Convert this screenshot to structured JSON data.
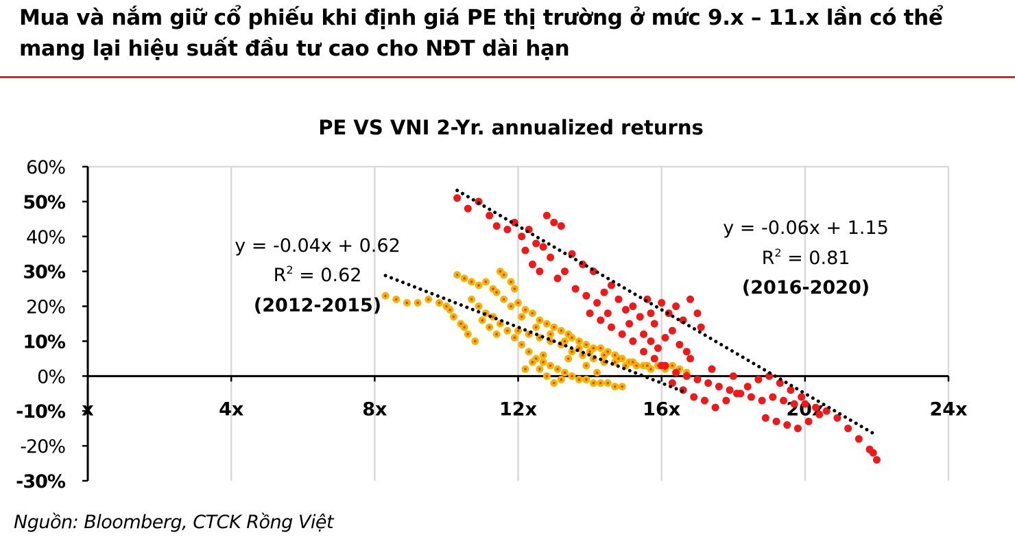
{
  "headline": "Mua và nắm giữ cổ phiếu khi định giá PE thị trường ở mức 9.x – 11.x lần có thể mang lại hiệu suất đầu tư cao cho NĐT dài hạn",
  "source": "Nguồn: Bloomberg, CTCK Rồng Việt",
  "colors": {
    "accent": "#e2202c",
    "series_2012": "#f5b400",
    "series_2012_dot": "#e0401a",
    "series_2016": "#f01818",
    "trend": "#000000",
    "grid": "#d9d9d9"
  },
  "chart_data": {
    "type": "scatter",
    "title": "PE VS VNI 2-Yr.  annualized returns",
    "xlabel": "",
    "ylabel": "",
    "xlim": [
      0,
      24
    ],
    "ylim": [
      -0.3,
      0.6
    ],
    "x_ticks": [
      0,
      4,
      8,
      12,
      16,
      20,
      24
    ],
    "x_tick_labels": [
      "x",
      "4x",
      "8x",
      "12x",
      "16x",
      "20x",
      "24x"
    ],
    "y_ticks": [
      0.6,
      0.5,
      0.4,
      0.3,
      0.2,
      0.1,
      0,
      -0.1,
      -0.2,
      -0.3
    ],
    "y_tick_labels": [
      "60%",
      "50%",
      "40%",
      "30%",
      "20%",
      "10%",
      "0%",
      "-10%",
      "-20%",
      "-30%"
    ],
    "grid": "vertical",
    "legend": "none",
    "series": [
      {
        "period": "2012-2015",
        "color": "#f5b400",
        "points": [
          [
            8.3,
            0.23
          ],
          [
            8.6,
            0.22
          ],
          [
            8.9,
            0.21
          ],
          [
            9.2,
            0.21
          ],
          [
            9.5,
            0.22
          ],
          [
            9.8,
            0.21
          ],
          [
            10.0,
            0.2
          ],
          [
            10.1,
            0.19
          ],
          [
            10.2,
            0.17
          ],
          [
            10.4,
            0.15
          ],
          [
            10.5,
            0.14
          ],
          [
            10.6,
            0.12
          ],
          [
            10.8,
            0.1
          ],
          [
            10.3,
            0.29
          ],
          [
            10.5,
            0.28
          ],
          [
            10.7,
            0.27
          ],
          [
            10.9,
            0.26
          ],
          [
            11.1,
            0.27
          ],
          [
            11.3,
            0.25
          ],
          [
            11.4,
            0.24
          ],
          [
            11.5,
            0.3
          ],
          [
            11.6,
            0.29
          ],
          [
            11.8,
            0.27
          ],
          [
            11.9,
            0.25
          ],
          [
            11.6,
            0.22
          ],
          [
            11.8,
            0.2
          ],
          [
            12.0,
            0.21
          ],
          [
            12.2,
            0.19
          ],
          [
            12.4,
            0.18
          ],
          [
            12.6,
            0.16
          ],
          [
            12.8,
            0.15
          ],
          [
            13.0,
            0.14
          ],
          [
            13.2,
            0.13
          ],
          [
            13.4,
            0.12
          ],
          [
            13.5,
            0.11
          ],
          [
            13.7,
            0.1
          ],
          [
            13.9,
            0.09
          ],
          [
            14.1,
            0.08
          ],
          [
            14.3,
            0.08
          ],
          [
            14.5,
            0.07
          ],
          [
            14.7,
            0.06
          ],
          [
            14.9,
            0.05
          ],
          [
            15.1,
            0.04
          ],
          [
            15.3,
            0.03
          ],
          [
            15.5,
            0.03
          ],
          [
            15.7,
            0.02
          ],
          [
            15.9,
            0.03
          ],
          [
            16.1,
            0.02
          ],
          [
            16.3,
            0.03
          ],
          [
            16.5,
            0.02
          ],
          [
            16.7,
            0.01
          ],
          [
            10.7,
            0.22
          ],
          [
            10.9,
            0.2
          ],
          [
            11.1,
            0.18
          ],
          [
            11.3,
            0.17
          ],
          [
            11.5,
            0.15
          ],
          [
            11.7,
            0.13
          ],
          [
            11.9,
            0.11
          ],
          [
            12.1,
            0.09
          ],
          [
            12.3,
            0.07
          ],
          [
            12.5,
            0.05
          ],
          [
            12.7,
            0.04
          ],
          [
            12.9,
            0.03
          ],
          [
            13.1,
            0.02
          ],
          [
            13.3,
            0.01
          ],
          [
            13.5,
            0.0
          ],
          [
            13.7,
            -0.01
          ],
          [
            13.9,
            -0.01
          ],
          [
            14.1,
            -0.02
          ],
          [
            14.3,
            -0.02
          ],
          [
            14.5,
            -0.02
          ],
          [
            14.7,
            -0.03
          ],
          [
            14.9,
            -0.03
          ],
          [
            12.0,
            0.13
          ],
          [
            12.3,
            0.12
          ],
          [
            12.6,
            0.11
          ],
          [
            12.9,
            0.1
          ],
          [
            13.2,
            0.09
          ],
          [
            13.5,
            0.07
          ],
          [
            13.8,
            0.06
          ],
          [
            14.1,
            0.05
          ],
          [
            14.4,
            0.04
          ],
          [
            14.7,
            0.04
          ],
          [
            15.0,
            0.03
          ],
          [
            12.4,
            0.04
          ],
          [
            12.6,
            0.02
          ],
          [
            12.8,
            0.0
          ],
          [
            13.0,
            -0.02
          ],
          [
            13.2,
            -0.01
          ],
          [
            11.0,
            0.16
          ],
          [
            11.2,
            0.14
          ],
          [
            11.4,
            0.12
          ],
          [
            12.1,
            0.17
          ],
          [
            12.5,
            0.14
          ],
          [
            12.9,
            0.12
          ],
          [
            13.3,
            0.1
          ],
          [
            13.7,
            0.08
          ],
          [
            14.0,
            0.07
          ],
          [
            14.4,
            0.06
          ],
          [
            14.8,
            0.05
          ],
          [
            15.2,
            0.04
          ],
          [
            15.6,
            0.03
          ],
          [
            12.2,
            0.02
          ],
          [
            12.7,
            0.06
          ],
          [
            13.4,
            0.05
          ],
          [
            13.9,
            0.03
          ],
          [
            14.2,
            0.01
          ]
        ]
      },
      {
        "period": "2016-2020",
        "color": "#f01818",
        "points": [
          [
            10.3,
            0.51
          ],
          [
            10.6,
            0.48
          ],
          [
            10.9,
            0.5
          ],
          [
            11.2,
            0.46
          ],
          [
            11.4,
            0.43
          ],
          [
            11.7,
            0.42
          ],
          [
            11.9,
            0.44
          ],
          [
            12.1,
            0.4
          ],
          [
            12.3,
            0.42
          ],
          [
            12.5,
            0.38
          ],
          [
            12.7,
            0.37
          ],
          [
            12.8,
            0.46
          ],
          [
            13.0,
            0.44
          ],
          [
            13.2,
            0.43
          ],
          [
            12.4,
            0.32
          ],
          [
            12.6,
            0.3
          ],
          [
            12.9,
            0.34
          ],
          [
            13.1,
            0.28
          ],
          [
            13.3,
            0.3
          ],
          [
            13.6,
            0.25
          ],
          [
            13.9,
            0.23
          ],
          [
            14.2,
            0.21
          ],
          [
            14.4,
            0.24
          ],
          [
            14.6,
            0.26
          ],
          [
            14.8,
            0.22
          ],
          [
            15.0,
            0.19
          ],
          [
            15.2,
            0.2
          ],
          [
            15.4,
            0.17
          ],
          [
            15.6,
            0.22
          ],
          [
            15.8,
            0.15
          ],
          [
            16.0,
            0.21
          ],
          [
            16.2,
            0.18
          ],
          [
            16.4,
            0.2
          ],
          [
            16.6,
            0.16
          ],
          [
            16.8,
            0.22
          ],
          [
            17.0,
            0.18
          ],
          [
            17.1,
            0.14
          ],
          [
            15.5,
            0.12
          ],
          [
            15.7,
            0.1
          ],
          [
            15.9,
            0.08
          ],
          [
            16.1,
            0.11
          ],
          [
            16.3,
            0.13
          ],
          [
            16.5,
            0.09
          ],
          [
            16.7,
            0.07
          ],
          [
            14.0,
            0.18
          ],
          [
            14.3,
            0.16
          ],
          [
            14.6,
            0.14
          ],
          [
            14.9,
            0.12
          ],
          [
            15.2,
            0.1
          ],
          [
            15.5,
            0.07
          ],
          [
            15.8,
            0.05
          ],
          [
            16.1,
            0.03
          ],
          [
            16.4,
            0.01
          ],
          [
            16.7,
            0.0
          ],
          [
            17.0,
            -0.01
          ],
          [
            17.3,
            -0.02
          ],
          [
            17.6,
            -0.03
          ],
          [
            17.9,
            -0.04
          ],
          [
            18.2,
            -0.05
          ],
          [
            18.5,
            -0.06
          ],
          [
            18.8,
            -0.07
          ],
          [
            19.1,
            -0.06
          ],
          [
            19.4,
            -0.07
          ],
          [
            19.7,
            -0.08
          ],
          [
            20.0,
            -0.08
          ],
          [
            20.3,
            -0.09
          ],
          [
            20.6,
            -0.1
          ],
          [
            20.9,
            -0.12
          ],
          [
            21.2,
            -0.15
          ],
          [
            21.5,
            -0.18
          ],
          [
            21.8,
            -0.21
          ],
          [
            22.0,
            -0.24
          ],
          [
            21.9,
            -0.22
          ],
          [
            16.3,
            -0.02
          ],
          [
            16.6,
            -0.04
          ],
          [
            16.9,
            -0.06
          ],
          [
            17.2,
            -0.07
          ],
          [
            17.5,
            -0.09
          ],
          [
            17.8,
            -0.07
          ],
          [
            18.1,
            -0.05
          ],
          [
            18.4,
            -0.03
          ],
          [
            18.7,
            -0.01
          ],
          [
            19.0,
            0.0
          ],
          [
            19.3,
            -0.02
          ],
          [
            19.6,
            -0.04
          ],
          [
            19.9,
            -0.06
          ],
          [
            18.9,
            -0.12
          ],
          [
            19.2,
            -0.13
          ],
          [
            19.5,
            -0.14
          ],
          [
            19.8,
            -0.15
          ],
          [
            20.1,
            -0.13
          ],
          [
            20.4,
            -0.11
          ],
          [
            16.0,
            0.03
          ],
          [
            16.8,
            0.05
          ],
          [
            17.4,
            0.02
          ],
          [
            18.0,
            0.0
          ],
          [
            13.5,
            0.35
          ],
          [
            13.8,
            0.32
          ],
          [
            14.1,
            0.3
          ],
          [
            12.2,
            0.36
          ],
          [
            14.5,
            0.18
          ],
          [
            15.1,
            0.15
          ],
          [
            15.7,
            0.18
          ]
        ]
      }
    ],
    "trendlines": [
      {
        "period": "2012-2015",
        "slope": -0.04,
        "intercept": 0.62,
        "x_range": [
          8.3,
          16.7
        ],
        "equation": "y = -0.04x + 0.62",
        "r2_prefix": "R",
        "r2_sup": "2",
        "r2_value": " = 0.62",
        "label": "(2012-2015)"
      },
      {
        "period": "2016-2020",
        "slope": -0.06,
        "intercept": 1.15,
        "x_range": [
          10.3,
          22.0
        ],
        "equation": "y = -0.06x + 1.15",
        "r2_prefix": "R",
        "r2_sup": "2",
        "r2_value": " = 0.81",
        "label": "(2016-2020)"
      }
    ]
  }
}
